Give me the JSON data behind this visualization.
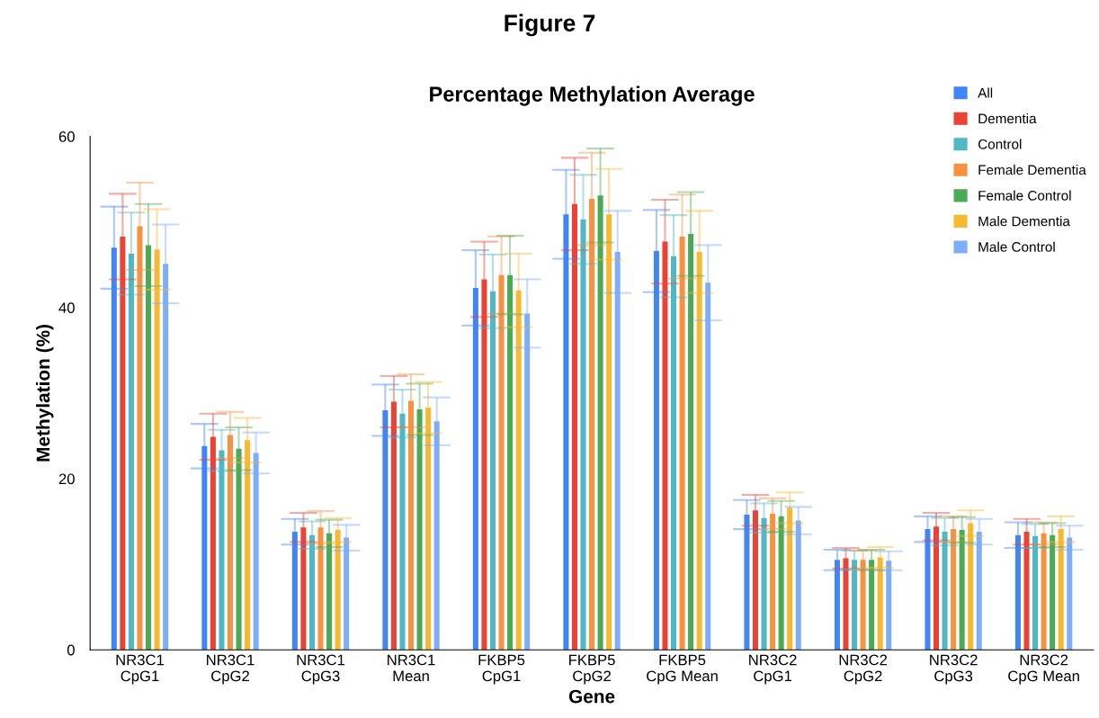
{
  "chart_data": {
    "type": "bar",
    "title": "Percentage Methylation Average",
    "xlabel": "Gene",
    "ylabel": "Methylation (%)",
    "annotations": [
      "Figure 7"
    ],
    "categories": [
      "NR3C1\nCpG1",
      "NR3C1\nCpG2",
      "NR3C1\nCpG3",
      "NR3C1\nMean",
      "FKBP5\nCpG1",
      "FKBP5\nCpG2",
      "FKBP5\nCpG Mean",
      "NR3C2\nCpG1",
      "NR3C2\nCpG2",
      "NR3C2\nCpG3",
      "NR3C2\nCpG Mean"
    ],
    "series": [
      {
        "name": "All",
        "color": "#4285f4",
        "values": [
          47.0,
          23.8,
          13.8,
          28.0,
          42.3,
          50.9,
          46.6,
          15.8,
          10.5,
          14.1,
          13.4
        ],
        "errors": [
          4.8,
          2.6,
          1.5,
          3.0,
          4.4,
          5.2,
          4.8,
          1.7,
          1.2,
          1.5,
          1.5
        ]
      },
      {
        "name": "Dementia",
        "color": "#ea4335",
        "values": [
          48.3,
          24.9,
          14.3,
          29.0,
          43.3,
          52.1,
          47.7,
          16.3,
          10.7,
          14.4,
          13.8
        ],
        "errors": [
          5.0,
          2.7,
          1.7,
          3.0,
          4.4,
          5.4,
          4.9,
          1.8,
          1.2,
          1.6,
          1.5
        ]
      },
      {
        "name": "Control",
        "color": "#4fb8c4",
        "values": [
          46.3,
          23.3,
          13.4,
          27.6,
          41.9,
          50.3,
          46.0,
          15.4,
          10.5,
          13.8,
          13.3
        ],
        "errors": [
          4.8,
          2.4,
          1.6,
          2.8,
          4.3,
          5.2,
          4.8,
          1.7,
          1.1,
          1.6,
          1.4
        ]
      },
      {
        "name": "Female Dementia",
        "color": "#f69240",
        "values": [
          49.5,
          25.1,
          14.3,
          29.1,
          43.8,
          52.7,
          48.3,
          15.9,
          10.5,
          14.1,
          13.6
        ],
        "errors": [
          5.1,
          2.7,
          1.9,
          3.1,
          4.5,
          5.4,
          4.9,
          1.8,
          1.1,
          1.5,
          1.3
        ]
      },
      {
        "name": "Female Control",
        "color": "#4caa55",
        "values": [
          47.3,
          23.5,
          13.6,
          28.1,
          43.8,
          53.1,
          48.6,
          15.6,
          10.5,
          14.0,
          13.4
        ],
        "errors": [
          4.8,
          2.5,
          1.6,
          3.0,
          4.6,
          5.5,
          4.9,
          1.8,
          1.2,
          1.5,
          1.4
        ]
      },
      {
        "name": "Male Dementia",
        "color": "#f8b932",
        "values": [
          46.8,
          24.5,
          14.0,
          28.3,
          42.0,
          50.9,
          46.5,
          16.6,
          10.8,
          14.8,
          14.1
        ],
        "errors": [
          4.7,
          2.6,
          1.4,
          3.0,
          4.3,
          5.3,
          4.8,
          1.8,
          1.2,
          1.5,
          1.5
        ]
      },
      {
        "name": "Male Control",
        "color": "#7eaef7",
        "values": [
          45.1,
          23.0,
          13.1,
          26.7,
          39.3,
          46.5,
          42.9,
          15.1,
          10.4,
          13.8,
          13.1
        ],
        "errors": [
          4.6,
          2.4,
          1.5,
          2.8,
          4.0,
          4.8,
          4.4,
          1.6,
          1.1,
          1.5,
          1.4
        ]
      }
    ],
    "ylim": [
      0,
      60
    ],
    "yticks": [
      0,
      20,
      40,
      60
    ],
    "grid": false,
    "legend": "top right"
  }
}
